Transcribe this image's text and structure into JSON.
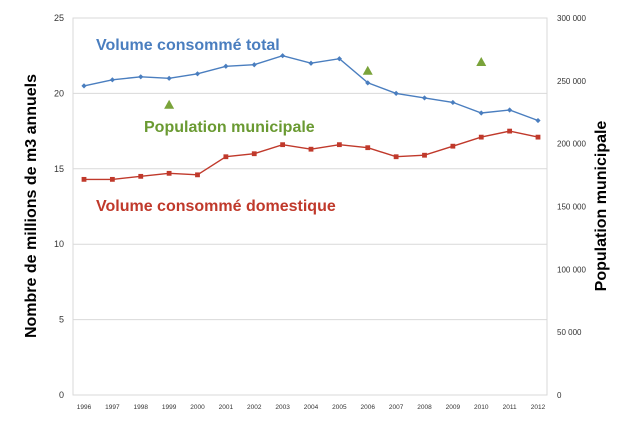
{
  "chart_data": {
    "type": "line",
    "xlabel": "",
    "ylabel": "Nombre de millions de m3 annuels",
    "ylabel_right": "Population municipale",
    "ylim": [
      0,
      25
    ],
    "ylim_right": [
      0,
      300000
    ],
    "yticks_left": [
      "0",
      "5",
      "10",
      "15",
      "20",
      "25"
    ],
    "yticks_right": [
      "0",
      "50 000",
      "100 000",
      "150 000",
      "200 000",
      "250 000",
      "300 000"
    ],
    "grid": true,
    "x": [
      "1996",
      "1997",
      "1998",
      "1999",
      "2000",
      "2001",
      "2002",
      "2003",
      "2004",
      "2005",
      "2006",
      "2007",
      "2008",
      "2009",
      "2010",
      "2011",
      "2012"
    ],
    "series": [
      {
        "name": "Volume consommé total",
        "axis": "left",
        "color": "#4a7ebf",
        "marker": "diamond",
        "values": [
          20.5,
          20.9,
          21.1,
          21.0,
          21.3,
          21.8,
          21.9,
          22.5,
          22.0,
          22.3,
          20.7,
          20.0,
          19.7,
          19.4,
          18.7,
          18.9,
          18.2
        ]
      },
      {
        "name": "Volume consommé domestique",
        "axis": "left",
        "color": "#c0392b",
        "marker": "square",
        "values": [
          14.3,
          14.3,
          14.5,
          14.7,
          14.6,
          15.8,
          16.0,
          16.6,
          16.3,
          16.6,
          16.4,
          15.8,
          15.9,
          16.5,
          17.1,
          17.5,
          17.1
        ]
      },
      {
        "name": "Population municipale",
        "axis": "right",
        "color": "#7aa33a",
        "marker": "triangle",
        "points": [
          {
            "x": "1999",
            "y": 231000
          },
          {
            "x": "2006",
            "y": 258000
          },
          {
            "x": "2010",
            "y": 265000
          }
        ]
      }
    ],
    "annotations": [
      {
        "text": "Volume consommé total",
        "color": "#4a7ebf"
      },
      {
        "text": "Population municipale",
        "color": "#6a9a32"
      },
      {
        "text": "Volume consommé domestique",
        "color": "#c0392b"
      }
    ]
  }
}
